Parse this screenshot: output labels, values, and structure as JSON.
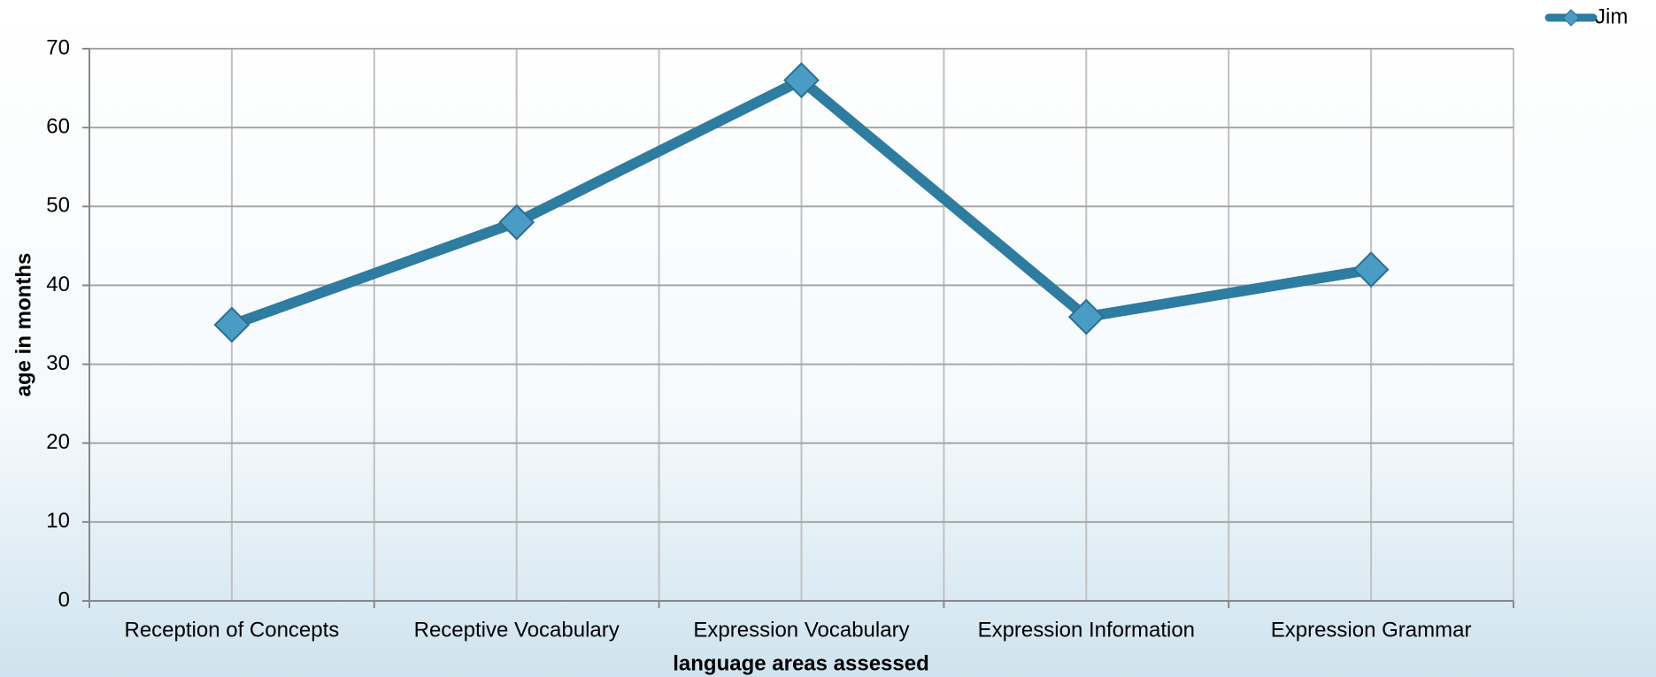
{
  "chart_data": {
    "type": "line",
    "x_label": "language areas assessed",
    "y_label": "age in months",
    "categories": [
      "Reception of Concepts",
      "Receptive Vocabulary",
      "Expression Vocabulary",
      "Expression Information",
      "Expression Grammar"
    ],
    "series": [
      {
        "name": "Jim",
        "color": "#2e7ca0",
        "values": [
          35,
          48,
          66,
          36,
          42
        ]
      }
    ],
    "ylim": [
      0,
      70
    ],
    "yticks": [
      0,
      10,
      20,
      30,
      40,
      50,
      60,
      70
    ],
    "grid": true,
    "legend": "top-right"
  }
}
